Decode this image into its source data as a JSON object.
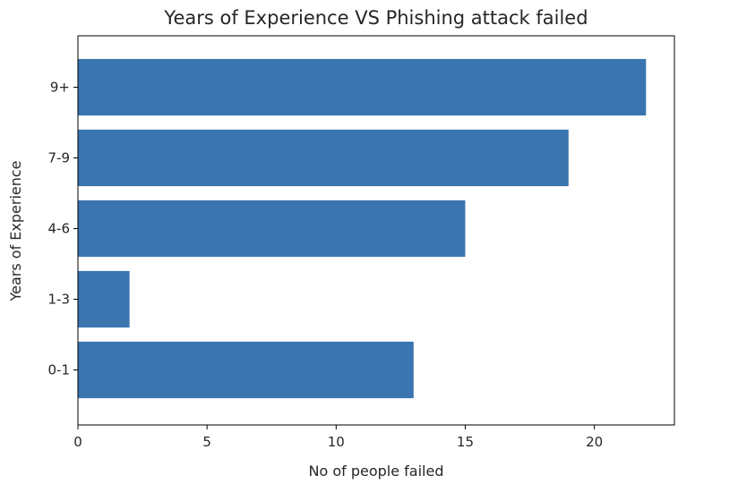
{
  "chart_data": {
    "type": "bar",
    "orientation": "horizontal",
    "title": "Years of Experience VS Phishing attack failed",
    "xlabel": "No of people failed",
    "ylabel": "Years of Experience",
    "categories": [
      "0-1",
      "1-3",
      "4-6",
      "7-9",
      "9+"
    ],
    "values": [
      13,
      2,
      15,
      19,
      22
    ],
    "xlim": [
      0,
      23.1
    ],
    "xticks": [
      0,
      5,
      10,
      15,
      20
    ],
    "grid": false,
    "bar_color": "#3a75af"
  }
}
